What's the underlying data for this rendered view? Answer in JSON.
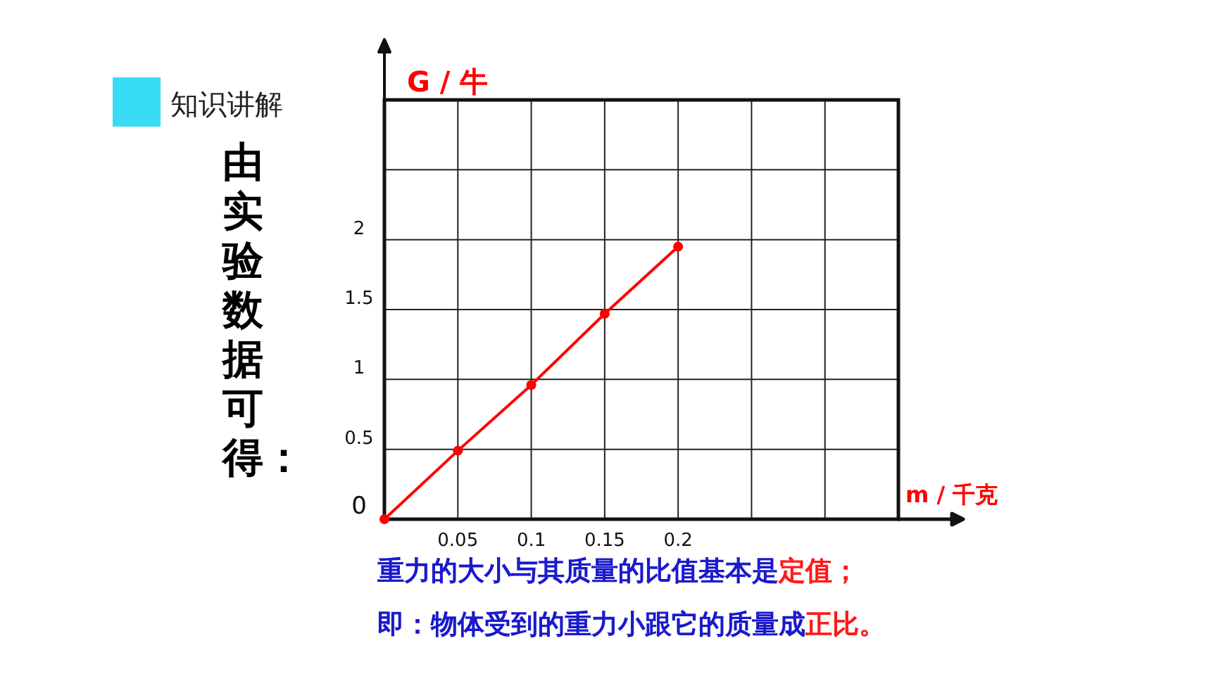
{
  "chart_data": {
    "type": "line",
    "xlabel": "m / 千克",
    "ylabel": "G / 牛",
    "x": [
      0,
      0.05,
      0.1,
      0.15,
      0.2
    ],
    "series": [
      {
        "color": "#ff0000",
        "values": [
          0,
          0.49,
          0.96,
          1.47,
          1.95
        ]
      }
    ],
    "xlim": [
      0,
      0.35
    ],
    "ylim": [
      0,
      3
    ],
    "xticks": [
      0.05,
      0.1,
      0.15,
      0.2,
      {
        "value": 0.25,
        "label": null
      },
      {
        "value": 0.3,
        "label": null
      }
    ],
    "yticks": [
      0,
      0.5,
      1,
      1.5,
      2,
      {
        "value": 2.5,
        "label": null
      },
      {
        "value": 3,
        "label": null
      }
    ],
    "grid": true,
    "marker": "circle",
    "line_style": "solid",
    "annotations": [
      "知识讲解",
      "由实验数据可得：",
      "重力的大小与其质量的比值基本是",
      "定值；",
      "即：物体受到的重力小跟它的质量成",
      "正比。"
    ]
  }
}
